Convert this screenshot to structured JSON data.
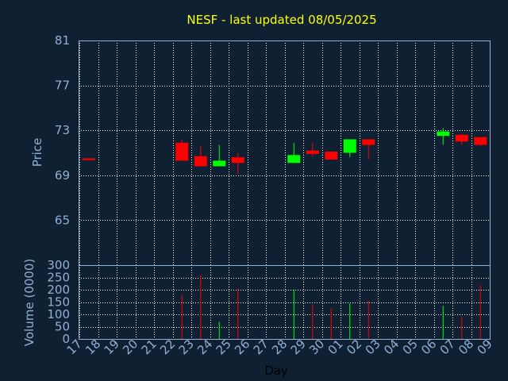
{
  "chart_data": {
    "type": "candlestick",
    "title": "NESF - last updated 08/05/2025",
    "xlabel": "Day",
    "price_panel": {
      "ylabel": "Price",
      "ylim": [
        61,
        81
      ],
      "yticks": [
        "81",
        "77",
        "73",
        "69",
        "65"
      ],
      "grid": true
    },
    "volume_panel": {
      "ylabel": "Volume (0000)",
      "ylim": [
        0,
        300
      ],
      "yticks": [
        "300",
        "250",
        "200",
        "150",
        "100",
        "50",
        "0"
      ],
      "grid": true
    },
    "x_ticks": [
      "17",
      "18",
      "19",
      "20",
      "21",
      "22",
      "23",
      "24",
      "25",
      "26",
      "27",
      "28",
      "29",
      "30",
      "01",
      "02",
      "03",
      "04",
      "05",
      "06",
      "07",
      "08",
      "09"
    ],
    "colors": {
      "up": "#00ff00",
      "down": "#ff0000",
      "grid": "#ffffff",
      "axis": "#8fb0d4",
      "background": "#102033",
      "title": "#ffff00"
    },
    "candles": [
      {
        "day": "17",
        "open": 70.5,
        "close": 70.35,
        "high": 70.5,
        "low": 70.35
      },
      {
        "day": "22",
        "open": 71.9,
        "close": 70.3,
        "high": 72.2,
        "low": 70.3
      },
      {
        "day": "23",
        "open": 70.7,
        "close": 69.8,
        "high": 71.6,
        "low": 69.8
      },
      {
        "day": "24",
        "open": 69.8,
        "close": 70.3,
        "high": 71.7,
        "low": 69.8
      },
      {
        "day": "25",
        "open": 70.6,
        "close": 70.1,
        "high": 71.0,
        "low": 69.1
      },
      {
        "day": "28",
        "open": 70.1,
        "close": 70.8,
        "high": 71.9,
        "low": 70.1
      },
      {
        "day": "29",
        "open": 71.2,
        "close": 70.9,
        "high": 71.9,
        "low": 70.7
      },
      {
        "day": "30",
        "open": 71.1,
        "close": 70.4,
        "high": 71.1,
        "low": 70.4
      },
      {
        "day": "01",
        "open": 71.0,
        "close": 72.2,
        "high": 72.2,
        "low": 70.6
      },
      {
        "day": "02",
        "open": 72.2,
        "close": 71.7,
        "high": 72.2,
        "low": 70.4
      },
      {
        "day": "06",
        "open": 72.5,
        "close": 72.9,
        "high": 73.2,
        "low": 71.7
      },
      {
        "day": "07",
        "open": 72.6,
        "close": 72.0,
        "high": 72.7,
        "low": 71.7
      },
      {
        "day": "08",
        "open": 72.4,
        "close": 71.7,
        "high": 72.4,
        "low": 71.6
      }
    ],
    "volume": [
      {
        "day": "22",
        "value": 180,
        "dir": "down"
      },
      {
        "day": "23",
        "value": 260,
        "dir": "down"
      },
      {
        "day": "24",
        "value": 70,
        "dir": "up"
      },
      {
        "day": "25",
        "value": 205,
        "dir": "down"
      },
      {
        "day": "28",
        "value": 200,
        "dir": "up"
      },
      {
        "day": "29",
        "value": 140,
        "dir": "down"
      },
      {
        "day": "30",
        "value": 125,
        "dir": "down"
      },
      {
        "day": "01",
        "value": 145,
        "dir": "up"
      },
      {
        "day": "02",
        "value": 155,
        "dir": "down"
      },
      {
        "day": "06",
        "value": 135,
        "dir": "up"
      },
      {
        "day": "07",
        "value": 90,
        "dir": "down"
      },
      {
        "day": "08",
        "value": 220,
        "dir": "down"
      }
    ]
  }
}
